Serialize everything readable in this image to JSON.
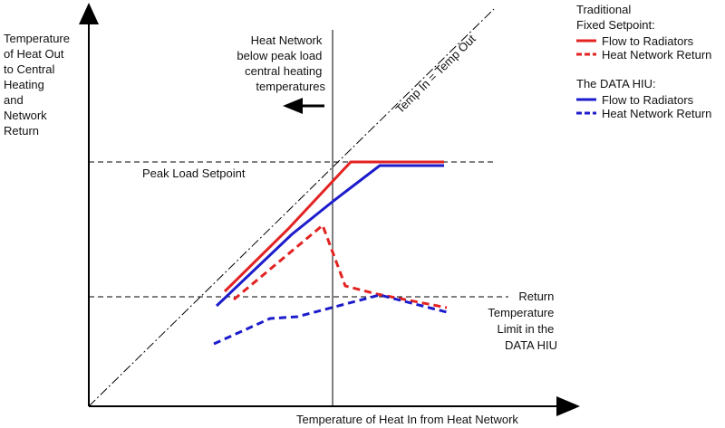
{
  "y_axis_label": [
    "Temperature",
    "of Heat Out",
    "to Central",
    "Heating",
    "and",
    "Network",
    "Return"
  ],
  "x_axis_label": "Temperature of Heat In from Heat Network",
  "diagonal_label": "Temp In = Temp Out",
  "heat_network_note": [
    "Heat Network",
    "below peak load",
    "central heating",
    "temperatures"
  ],
  "peak_load_label": "Peak Load Setpoint",
  "return_limit_label": [
    "Return",
    "Temperature",
    "Limit in the",
    "DATA HIU"
  ],
  "legend": {
    "traditional_title": [
      "Traditional",
      "Fixed Setpoint:"
    ],
    "traditional_flow": "Flow to Radiators",
    "traditional_return": "Heat Network Return",
    "data_title": "The DATA HIU:",
    "data_flow": "Flow to Radiators",
    "data_return": "Heat Network Return"
  },
  "colors": {
    "traditional": "#e32222",
    "data_hiu": "#1c1ccc",
    "axis": "#000000"
  },
  "icons": {
    "axis_arrows": "arrow-head-icon",
    "direction_arrow": "left-arrow-icon"
  }
}
